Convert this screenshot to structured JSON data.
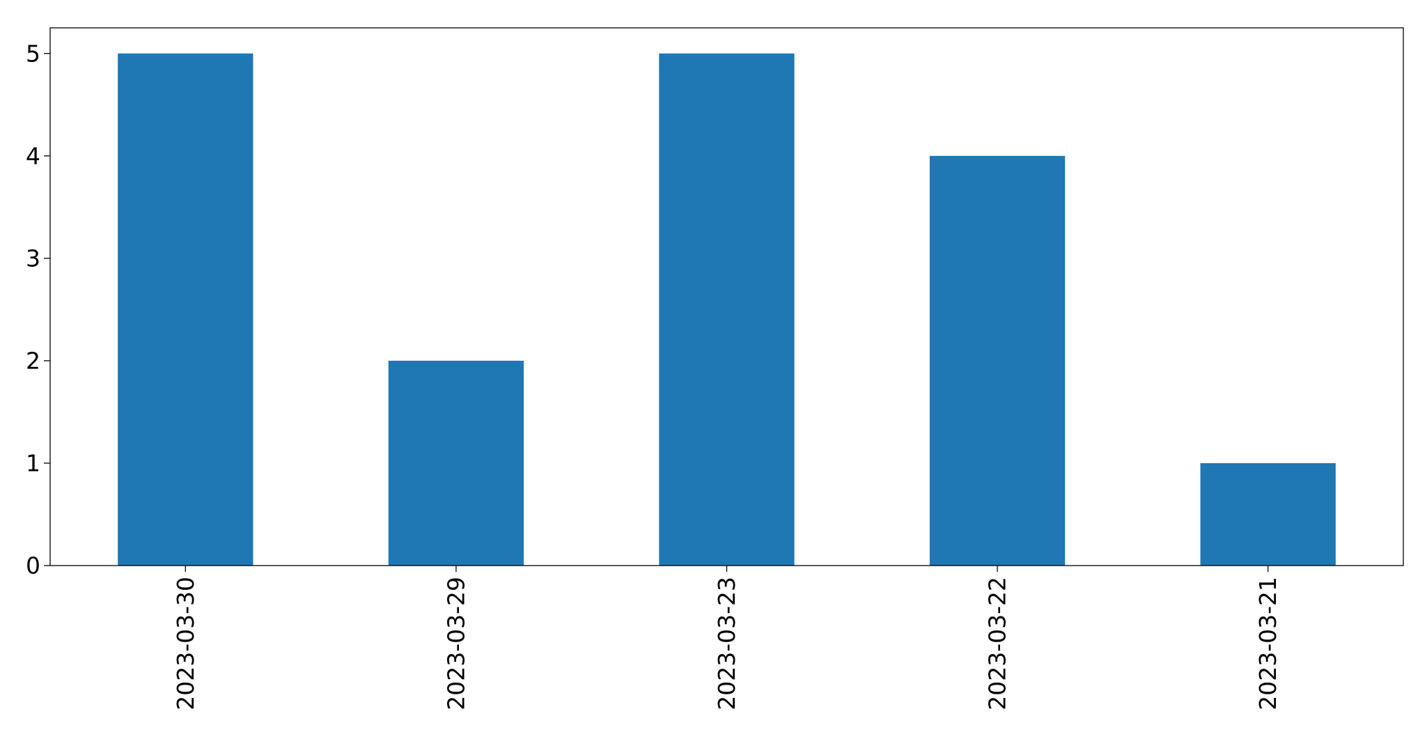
{
  "chart_data": {
    "type": "bar",
    "categories": [
      "2023-03-30",
      "2023-03-29",
      "2023-03-23",
      "2023-03-22",
      "2023-03-21"
    ],
    "values": [
      5,
      2,
      5,
      4,
      1
    ],
    "title": "",
    "xlabel": "",
    "ylabel": "",
    "ylim": [
      0,
      5.25
    ],
    "yticks": [
      0,
      1,
      2,
      3,
      4,
      5
    ],
    "grid": false,
    "legend": "none",
    "bar_color": "#1f77b4"
  }
}
